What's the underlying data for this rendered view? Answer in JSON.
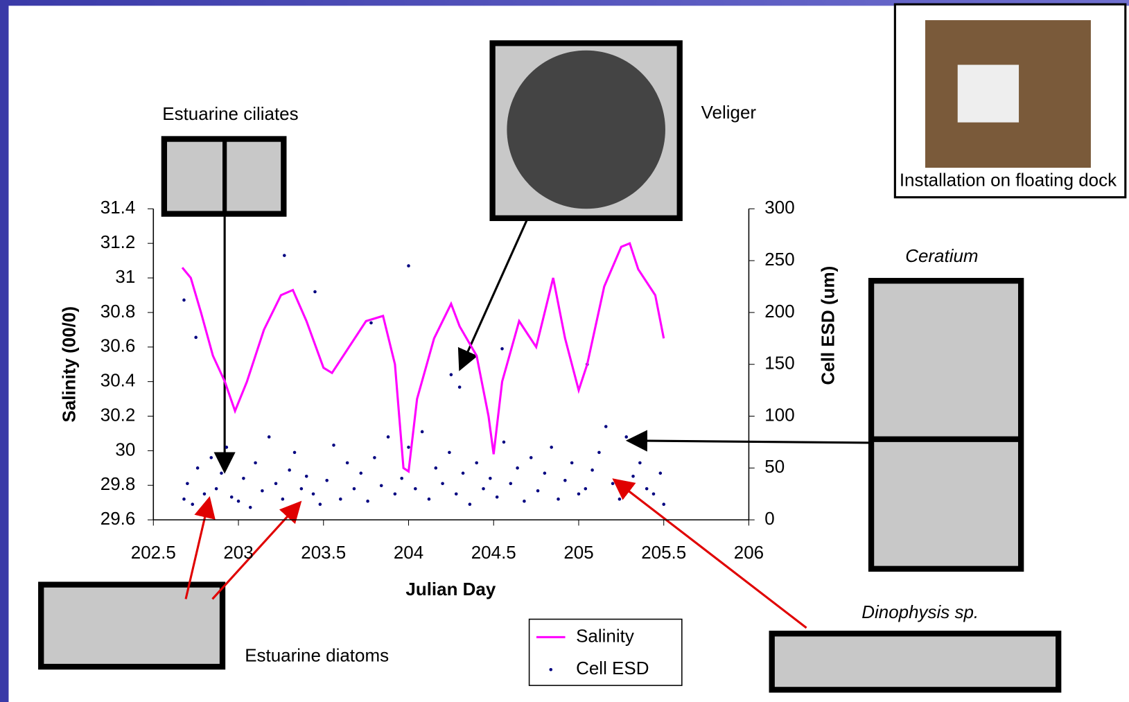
{
  "chart_data": {
    "type": "line_scatter",
    "xlabel": "Julian Day",
    "ylabel": "Salinity (00/0)",
    "y2label": "Cell ESD (um)",
    "xlim": [
      202.5,
      206
    ],
    "xticks": [
      202.5,
      203,
      203.5,
      204,
      204.5,
      205,
      205.5,
      206
    ],
    "ylim": [
      29.6,
      31.4
    ],
    "yticks": [
      29.6,
      29.8,
      30,
      30.2,
      30.4,
      30.6,
      30.8,
      31,
      31.2,
      31.4
    ],
    "y2lim": [
      0,
      300
    ],
    "y2ticks": [
      0,
      50,
      100,
      150,
      200,
      250,
      300
    ],
    "series": [
      {
        "name": "Salinity",
        "color": "#ff00ff",
        "x": [
          202.67,
          202.72,
          202.78,
          202.85,
          202.92,
          202.98,
          203.05,
          203.15,
          203.25,
          203.32,
          203.4,
          203.5,
          203.55,
          203.65,
          203.75,
          203.85,
          203.92,
          203.97,
          204.0,
          204.05,
          204.15,
          204.25,
          204.3,
          204.4,
          204.47,
          204.5,
          204.55,
          204.65,
          204.75,
          204.85,
          204.92,
          205.0,
          205.05,
          205.15,
          205.25,
          205.3,
          205.35,
          205.45,
          205.5
        ],
        "values": [
          31.06,
          31.0,
          30.8,
          30.55,
          30.4,
          30.23,
          30.4,
          30.7,
          30.9,
          30.93,
          30.75,
          30.48,
          30.45,
          30.6,
          30.75,
          30.78,
          30.5,
          29.9,
          29.88,
          30.3,
          30.65,
          30.85,
          30.72,
          30.55,
          30.2,
          29.98,
          30.4,
          30.75,
          30.6,
          31.0,
          30.65,
          30.35,
          30.5,
          30.95,
          31.18,
          31.2,
          31.05,
          30.9,
          30.65
        ]
      },
      {
        "name": "Cell ESD",
        "color": "#000080",
        "axis": "y2",
        "x": [
          202.68,
          202.7,
          202.73,
          202.76,
          202.8,
          202.84,
          202.87,
          202.9,
          202.93,
          202.96,
          203.0,
          203.03,
          203.07,
          203.1,
          203.14,
          203.18,
          203.22,
          203.26,
          203.3,
          203.33,
          203.37,
          203.4,
          203.44,
          203.48,
          203.52,
          203.56,
          203.6,
          203.64,
          203.68,
          203.72,
          203.76,
          203.8,
          203.84,
          203.88,
          203.92,
          203.96,
          204.0,
          204.04,
          204.08,
          204.12,
          204.16,
          204.2,
          204.24,
          204.28,
          204.32,
          204.36,
          204.4,
          204.44,
          204.48,
          204.52,
          204.56,
          204.6,
          204.64,
          204.68,
          204.72,
          204.76,
          204.8,
          204.84,
          204.88,
          204.92,
          204.96,
          205.0,
          205.04,
          205.08,
          205.12,
          205.16,
          205.2,
          205.24,
          205.28,
          205.32,
          205.36,
          205.4,
          205.44,
          205.48,
          205.5,
          202.68,
          202.75,
          203.27,
          203.45,
          204.0,
          204.25,
          204.3,
          205.05,
          204.55,
          203.78
        ],
        "values": [
          20,
          35,
          15,
          50,
          25,
          60,
          30,
          45,
          70,
          22,
          18,
          40,
          12,
          55,
          28,
          80,
          35,
          20,
          48,
          65,
          30,
          42,
          25,
          15,
          38,
          72,
          20,
          55,
          30,
          45,
          18,
          60,
          33,
          80,
          25,
          40,
          70,
          30,
          85,
          20,
          50,
          35,
          65,
          25,
          45,
          15,
          55,
          30,
          40,
          22,
          75,
          35,
          50,
          18,
          60,
          28,
          45,
          70,
          20,
          38,
          55,
          25,
          30,
          48,
          65,
          90,
          35,
          20,
          80,
          42,
          55,
          30,
          25,
          45,
          15,
          212,
          176,
          255,
          220,
          245,
          140,
          128,
          150,
          165,
          190
        ]
      }
    ],
    "annotations": [
      "Estuarine ciliates",
      "Veliger",
      "Ceratium",
      "Dinophysis sp.",
      "Estuarine diatoms",
      "Installation on floating dock"
    ]
  }
}
